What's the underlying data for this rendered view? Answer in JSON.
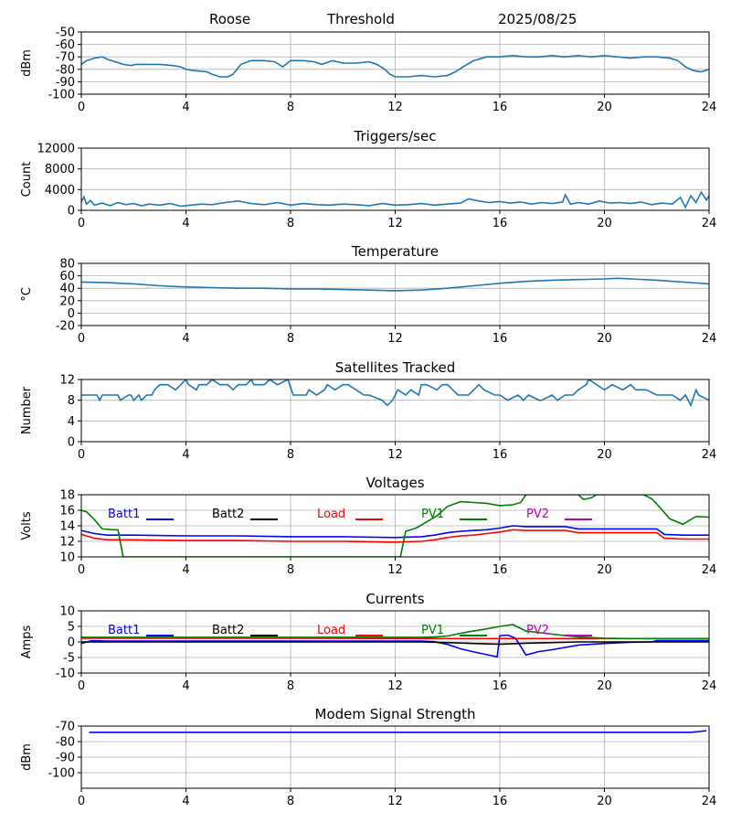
{
  "header": {
    "station": "Roose",
    "mode": "Threshold",
    "date": "2025/08/25"
  },
  "colors": {
    "default": "#1f77b4",
    "batt1": "#0000ff",
    "batt2": "#000000",
    "load": "#ff0000",
    "pv1": "#008000",
    "pv2": "#bf00bf",
    "grid": "#b0b0b0"
  },
  "chart_data": [
    {
      "type": "line",
      "title": "",
      "xlabel": "",
      "ylabel": "dBm",
      "xlim": [
        0,
        24
      ],
      "ylim": [
        -100,
        -50
      ],
      "xticks": [
        0,
        4,
        8,
        12,
        16,
        20,
        24
      ],
      "yticks": [
        -100,
        -90,
        -80,
        -70,
        -60,
        -50
      ],
      "grid": true,
      "series": [
        {
          "name": "",
          "color": "#1f77b4",
          "x": [
            0,
            0.2,
            0.5,
            0.8,
            1.0,
            1.3,
            1.6,
            1.9,
            2.1,
            2.5,
            3.0,
            3.5,
            3.8,
            4.0,
            4.3,
            4.8,
            5.0,
            5.3,
            5.6,
            5.8,
            6.1,
            6.5,
            7.0,
            7.4,
            7.7,
            8.0,
            8.5,
            8.9,
            9.2,
            9.6,
            10.0,
            10.5,
            11.0,
            11.3,
            11.6,
            11.8,
            12.0,
            12.5,
            13.0,
            13.5,
            14.0,
            14.3,
            14.6,
            15.0,
            15.5,
            16.0,
            16.5,
            17.0,
            17.5,
            18.0,
            18.5,
            19.0,
            19.5,
            20.0,
            20.5,
            21.0,
            21.5,
            22.0,
            22.5,
            22.8,
            23.1,
            23.4,
            23.7,
            24.0
          ],
          "y": [
            -76,
            -73,
            -71,
            -70,
            -72,
            -74,
            -76,
            -77,
            -76,
            -76,
            -76,
            -77,
            -78,
            -80,
            -81,
            -82,
            -84,
            -86,
            -86,
            -84,
            -76,
            -73,
            -73,
            -74,
            -78,
            -73,
            -73,
            -74,
            -76,
            -73,
            -75,
            -75,
            -74,
            -76,
            -80,
            -84,
            -86,
            -86,
            -85,
            -86,
            -85,
            -82,
            -78,
            -73,
            -70,
            -70,
            -69,
            -70,
            -70,
            -69,
            -70,
            -69,
            -70,
            -69,
            -70,
            -71,
            -70,
            -70,
            -71,
            -73,
            -78,
            -81,
            -82,
            -80
          ]
        }
      ]
    },
    {
      "type": "line",
      "title": "Triggers/sec",
      "xlabel": "",
      "ylabel": "Count",
      "xlim": [
        0,
        24
      ],
      "ylim": [
        0,
        12000
      ],
      "xticks": [
        0,
        4,
        8,
        12,
        16,
        20,
        24
      ],
      "yticks": [
        0,
        4000,
        8000,
        12000
      ],
      "grid": true,
      "series": [
        {
          "name": "",
          "color": "#1f77b4",
          "x": [
            0,
            0.1,
            0.2,
            0.35,
            0.5,
            0.8,
            1.1,
            1.4,
            1.7,
            2.0,
            2.3,
            2.6,
            3.0,
            3.4,
            3.8,
            4.2,
            4.6,
            5.0,
            5.5,
            6.0,
            6.5,
            7.0,
            7.5,
            8.0,
            8.5,
            9.0,
            9.5,
            10.0,
            10.5,
            11.0,
            11.5,
            12.0,
            12.5,
            13.0,
            13.5,
            14.0,
            14.5,
            14.8,
            15.2,
            15.6,
            16.0,
            16.4,
            16.8,
            17.2,
            17.6,
            18.0,
            18.4,
            18.5,
            18.7,
            19.0,
            19.4,
            19.8,
            20.2,
            20.6,
            21.0,
            21.4,
            21.8,
            22.2,
            22.6,
            22.9,
            23.1,
            23.3,
            23.5,
            23.7,
            23.9,
            24.0
          ],
          "y": [
            1600,
            2600,
            1200,
            1900,
            1000,
            1400,
            900,
            1500,
            1100,
            1300,
            900,
            1200,
            1000,
            1300,
            800,
            1000,
            1200,
            1100,
            1500,
            1800,
            1300,
            1100,
            1500,
            1000,
            1300,
            1100,
            1000,
            1200,
            1100,
            900,
            1300,
            1000,
            1100,
            1300,
            1000,
            1200,
            1400,
            2200,
            1800,
            1500,
            1700,
            1400,
            1600,
            1200,
            1500,
            1300,
            1600,
            3000,
            1200,
            1500,
            1200,
            1800,
            1400,
            1500,
            1300,
            1600,
            1100,
            1400,
            1200,
            2500,
            600,
            2800,
            1500,
            3500,
            2000,
            2800
          ]
        }
      ]
    },
    {
      "type": "line",
      "title": "Temperature",
      "xlabel": "",
      "ylabel": "°C",
      "xlim": [
        0,
        24
      ],
      "ylim": [
        -20,
        80
      ],
      "xticks": [
        0,
        4,
        8,
        12,
        16,
        20,
        24
      ],
      "yticks": [
        -20,
        0,
        20,
        40,
        60,
        80
      ],
      "grid": true,
      "series": [
        {
          "name": "",
          "color": "#1f77b4",
          "x": [
            0,
            1,
            2,
            3,
            4,
            5,
            6,
            7,
            8,
            9,
            10,
            11,
            12,
            13,
            14,
            15,
            16,
            17,
            18,
            19,
            20,
            20.5,
            21,
            22,
            23,
            24
          ],
          "y": [
            50,
            49,
            47,
            44,
            42,
            41,
            40,
            40,
            39,
            39,
            38,
            37,
            36,
            37,
            40,
            44,
            48,
            51,
            53,
            54,
            55,
            56,
            55,
            53,
            50,
            47
          ]
        }
      ]
    },
    {
      "type": "line",
      "title": "Satellites Tracked",
      "xlabel": "",
      "ylabel": "Number",
      "xlim": [
        0,
        24
      ],
      "ylim": [
        0,
        12
      ],
      "xticks": [
        0,
        4,
        8,
        12,
        16,
        20,
        24
      ],
      "yticks": [
        0,
        4,
        8,
        12
      ],
      "grid": true,
      "series": [
        {
          "name": "",
          "color": "#1f77b4",
          "x": [
            0,
            0.6,
            0.7,
            0.8,
            1.4,
            1.5,
            1.8,
            1.9,
            2.0,
            2.2,
            2.3,
            2.5,
            2.7,
            2.8,
            3.0,
            3.3,
            3.6,
            3.8,
            4.0,
            4.1,
            4.4,
            4.5,
            4.8,
            5.0,
            5.3,
            5.6,
            5.8,
            6.0,
            6.3,
            6.5,
            6.6,
            7.0,
            7.2,
            7.5,
            7.9,
            8.1,
            8.6,
            8.7,
            9.0,
            9.3,
            9.4,
            9.7,
            10.0,
            10.2,
            10.5,
            10.8,
            11.0,
            11.5,
            11.7,
            11.9,
            12.0,
            12.1,
            12.4,
            12.6,
            12.9,
            13.0,
            13.2,
            13.6,
            13.8,
            14.0,
            14.4,
            14.8,
            15.0,
            15.2,
            15.4,
            15.8,
            16.0,
            16.3,
            16.7,
            16.9,
            17.1,
            17.5,
            17.6,
            18.0,
            18.2,
            18.5,
            18.8,
            19.0,
            19.3,
            19.4,
            19.7,
            20.0,
            20.3,
            20.7,
            21.0,
            21.2,
            21.6,
            22.0,
            22.6,
            22.9,
            23.1,
            23.3,
            23.5,
            23.6,
            24.0
          ],
          "y": [
            9,
            9,
            8,
            9,
            9,
            8,
            9,
            9,
            8,
            9,
            8,
            9,
            9,
            10,
            11,
            11,
            10,
            11,
            12,
            11,
            10,
            11,
            11,
            12,
            11,
            11,
            10,
            11,
            11,
            12,
            11,
            11,
            12,
            11,
            12,
            9,
            9,
            10,
            9,
            10,
            11,
            10,
            11,
            11,
            10,
            9,
            9,
            8,
            7,
            8,
            9,
            10,
            9,
            10,
            9,
            11,
            11,
            10,
            11,
            11,
            9,
            9,
            10,
            11,
            10,
            9,
            9,
            8,
            9,
            8,
            9,
            8,
            8,
            9,
            8,
            9,
            9,
            10,
            11,
            12,
            11,
            10,
            11,
            10,
            11,
            10,
            10,
            9,
            9,
            8,
            9,
            7,
            10,
            9,
            8
          ]
        }
      ]
    },
    {
      "type": "line",
      "title": "Voltages",
      "xlabel": "",
      "ylabel": "Volts",
      "xlim": [
        0,
        24
      ],
      "ylim": [
        10,
        18
      ],
      "xticks": [
        0,
        4,
        8,
        12,
        16,
        20,
        24
      ],
      "yticks": [
        10,
        12,
        14,
        16,
        18
      ],
      "grid": true,
      "legend": "top",
      "series": [
        {
          "name": "Batt1",
          "color": "#0000ff",
          "x": [
            0,
            0.5,
            1,
            2,
            4,
            6,
            8,
            10,
            12,
            13,
            13.5,
            14,
            14.5,
            15,
            15.5,
            16,
            16.5,
            17,
            18,
            18.5,
            19,
            20,
            21,
            22,
            22.3,
            23,
            24
          ],
          "y": [
            13.4,
            13.0,
            12.8,
            12.8,
            12.7,
            12.7,
            12.6,
            12.6,
            12.5,
            12.6,
            12.8,
            13.1,
            13.3,
            13.4,
            13.5,
            13.7,
            14.0,
            13.9,
            13.9,
            13.9,
            13.6,
            13.6,
            13.6,
            13.6,
            12.9,
            12.8,
            12.8
          ]
        },
        {
          "name": "Batt2",
          "color": "#000000",
          "x": [],
          "y": []
        },
        {
          "name": "Load",
          "color": "#ff0000",
          "x": [
            0,
            0.5,
            1,
            2,
            4,
            6,
            8,
            10,
            12,
            13,
            13.5,
            14,
            14.5,
            15,
            15.5,
            16,
            16.5,
            17,
            18,
            18.5,
            19,
            20,
            21,
            22,
            22.3,
            23,
            24
          ],
          "y": [
            12.9,
            12.4,
            12.2,
            12.2,
            12.1,
            12.1,
            12.0,
            12.0,
            11.9,
            12.0,
            12.2,
            12.5,
            12.7,
            12.8,
            13.0,
            13.2,
            13.5,
            13.4,
            13.4,
            13.4,
            13.1,
            13.1,
            13.1,
            13.1,
            12.4,
            12.3,
            12.3
          ]
        },
        {
          "name": "PV1",
          "color": "#008000",
          "x": [
            0,
            0.2,
            0.5,
            0.8,
            1.2,
            1.4,
            1.6,
            12.2,
            12.4,
            12.8,
            13.2,
            13.6,
            14.0,
            14.5,
            15.0,
            15.5,
            16.0,
            16.5,
            16.8,
            17.0,
            19.0,
            19.2,
            19.5,
            19.7,
            21.5,
            21.8,
            22.0,
            22.5,
            23.0,
            23.3,
            23.5,
            24.0
          ],
          "y": [
            16.0,
            15.8,
            14.8,
            13.6,
            13.5,
            13.5,
            10.0,
            10.0,
            13.3,
            13.7,
            14.5,
            15.3,
            16.5,
            17.1,
            17.0,
            16.9,
            16.6,
            16.7,
            17.0,
            18.0,
            18.0,
            17.4,
            17.6,
            18.0,
            18.0,
            17.5,
            16.8,
            14.9,
            14.2,
            14.8,
            15.2,
            15.1
          ]
        },
        {
          "name": "PV2",
          "color": "#bf00bf",
          "x": [],
          "y": []
        }
      ]
    },
    {
      "type": "line",
      "title": "Currents",
      "xlabel": "",
      "ylabel": "Amps",
      "xlim": [
        0,
        24
      ],
      "ylim": [
        -10,
        10
      ],
      "xticks": [
        0,
        4,
        8,
        12,
        16,
        20,
        24
      ],
      "yticks": [
        -10,
        -5,
        0,
        5,
        10
      ],
      "grid": true,
      "legend": "top",
      "series": [
        {
          "name": "Batt1",
          "color": "#0000ff",
          "x": [
            0,
            0.4,
            1,
            4,
            8,
            12,
            13,
            13.5,
            14,
            14.5,
            15,
            15.5,
            15.9,
            16.0,
            16.3,
            16.6,
            17.0,
            17.5,
            18,
            19,
            20,
            21,
            21.8,
            22.0,
            24
          ],
          "y": [
            -0.5,
            0.4,
            0.3,
            0.3,
            0.3,
            0.3,
            0.3,
            0.1,
            -0.8,
            -2.2,
            -3.2,
            -4.1,
            -4.8,
            2.0,
            2.2,
            1.2,
            -4.2,
            -3.1,
            -2.5,
            -1.0,
            -0.5,
            -0.1,
            0.0,
            0.4,
            0.4
          ]
        },
        {
          "name": "Batt2",
          "color": "#000000",
          "x": [
            0,
            4,
            8,
            12,
            13,
            14,
            15,
            16,
            17,
            18,
            19,
            20,
            22,
            24
          ],
          "y": [
            0,
            0,
            0,
            0,
            0,
            -0.2,
            -0.5,
            -0.7,
            -0.4,
            -0.2,
            0,
            0,
            0,
            0
          ]
        },
        {
          "name": "Load",
          "color": "#ff0000",
          "x": [
            0,
            4,
            8,
            12,
            16,
            20,
            24
          ],
          "y": [
            1.2,
            1.2,
            1.2,
            1.1,
            1.1,
            1.1,
            1.1
          ]
        },
        {
          "name": "PV1",
          "color": "#008000",
          "x": [
            0,
            4,
            8,
            12,
            13,
            13.5,
            14,
            14.5,
            15,
            15.5,
            16,
            16.5,
            17,
            18,
            19,
            20,
            21,
            22,
            24
          ],
          "y": [
            1.5,
            1.5,
            1.5,
            1.5,
            1.5,
            1.6,
            1.9,
            2.8,
            3.5,
            4.2,
            5.0,
            5.6,
            3.5,
            2.5,
            1.6,
            1.2,
            1.1,
            1.1,
            1.1
          ]
        },
        {
          "name": "PV2",
          "color": "#bf00bf",
          "x": [],
          "y": []
        }
      ]
    },
    {
      "type": "line",
      "title": "Modem Signal Strength",
      "xlabel": "",
      "ylabel": "dBm",
      "xlim": [
        0,
        24
      ],
      "ylim": [
        -110,
        -70
      ],
      "xticks": [
        0,
        4,
        8,
        12,
        16,
        20,
        24
      ],
      "yticks": [
        -100,
        -90,
        -80,
        -70
      ],
      "grid": true,
      "series": [
        {
          "name": "",
          "color": "#0000ff",
          "x": [
            0.3,
            4,
            8,
            12,
            16,
            20,
            23.3,
            23.6,
            23.9
          ],
          "y": [
            -74,
            -74,
            -74,
            -74,
            -74,
            -74,
            -74,
            -73.5,
            -73
          ]
        }
      ]
    }
  ]
}
